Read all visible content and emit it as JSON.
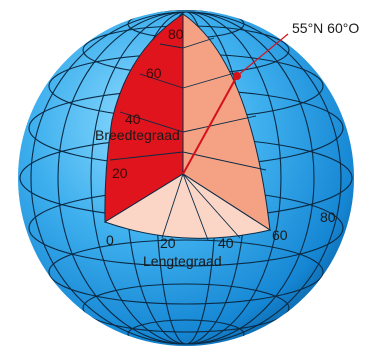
{
  "colors": {
    "sea_light": "#7fd0f7",
    "sea_mid": "#2ea3e8",
    "sea_dark": "#0b6fb5",
    "latitude_wedge": "#e0141c",
    "longitude_wedge": "#f4a184",
    "equator_wedge": "#fbd5c5",
    "grid_line": "#0a2a45",
    "marker": "#d8101a"
  },
  "point_label": "55°N 60°O",
  "latitude": {
    "title": "Breedtegraad",
    "ticks": [
      "80",
      "60",
      "40",
      "20"
    ]
  },
  "longitude": {
    "title": "Lengtegraad",
    "ticks": [
      "0",
      "20",
      "40",
      "60",
      "80"
    ]
  }
}
